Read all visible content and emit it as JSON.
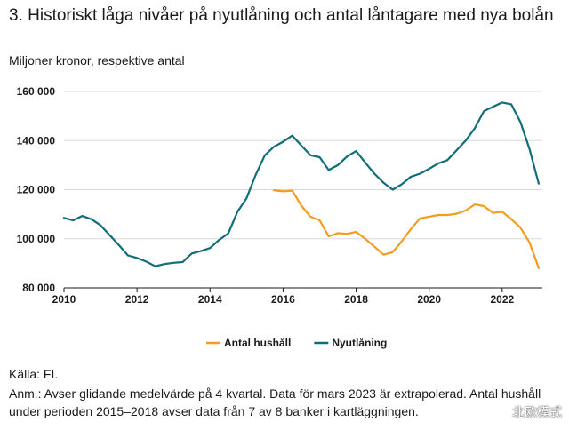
{
  "header": {
    "title": "3. Historiskt låga nivåer på nyutlåning och antal låntagare med nya bolån",
    "subtitle": "Miljoner kronor, respektive antal"
  },
  "chart_data": {
    "type": "line",
    "ylim": [
      80000,
      160000
    ],
    "xlim": [
      2010,
      2023.1
    ],
    "y_ticks": [
      80000,
      100000,
      120000,
      140000,
      160000
    ],
    "y_tick_labels": [
      "80 000",
      "100 000",
      "120 000",
      "140 000",
      "160 000"
    ],
    "x_ticks": [
      2010,
      2012,
      2014,
      2016,
      2018,
      2020,
      2022
    ],
    "x_tick_labels": [
      "2010",
      "2012",
      "2014",
      "2016",
      "2018",
      "2020",
      "2022"
    ],
    "grid": "horizontal",
    "legend_position": "bottom",
    "series": [
      {
        "name": "Antal hushåll",
        "color": "#F39C1F",
        "points": [
          [
            2015.75,
            119800
          ],
          [
            2016.0,
            119300
          ],
          [
            2016.25,
            119600
          ],
          [
            2016.5,
            113500
          ],
          [
            2016.75,
            109000
          ],
          [
            2017.0,
            107500
          ],
          [
            2017.25,
            101000
          ],
          [
            2017.5,
            102300
          ],
          [
            2017.75,
            102000
          ],
          [
            2018.0,
            102800
          ],
          [
            2018.25,
            100000
          ],
          [
            2018.5,
            96800
          ],
          [
            2018.75,
            93500
          ],
          [
            2019.0,
            94500
          ],
          [
            2019.25,
            99000
          ],
          [
            2019.5,
            104000
          ],
          [
            2019.75,
            108300
          ],
          [
            2020.0,
            109000
          ],
          [
            2020.25,
            109700
          ],
          [
            2020.5,
            109700
          ],
          [
            2020.75,
            110200
          ],
          [
            2021.0,
            111500
          ],
          [
            2021.25,
            114000
          ],
          [
            2021.5,
            113300
          ],
          [
            2021.75,
            110500
          ],
          [
            2022.0,
            111000
          ],
          [
            2022.25,
            108000
          ],
          [
            2022.5,
            104500
          ],
          [
            2022.75,
            98500
          ],
          [
            2023.0,
            88000
          ]
        ]
      },
      {
        "name": "Nyutlåning",
        "color": "#0F6E78",
        "points": [
          [
            2010.0,
            108500
          ],
          [
            2010.25,
            107500
          ],
          [
            2010.5,
            109300
          ],
          [
            2010.75,
            108000
          ],
          [
            2011.0,
            105500
          ],
          [
            2011.25,
            101500
          ],
          [
            2011.5,
            97500
          ],
          [
            2011.75,
            93200
          ],
          [
            2012.0,
            92200
          ],
          [
            2012.25,
            90700
          ],
          [
            2012.5,
            88800
          ],
          [
            2012.75,
            89700
          ],
          [
            2013.0,
            90200
          ],
          [
            2013.25,
            90500
          ],
          [
            2013.5,
            94000
          ],
          [
            2013.75,
            95000
          ],
          [
            2014.0,
            96200
          ],
          [
            2014.25,
            99500
          ],
          [
            2014.5,
            102200
          ],
          [
            2014.75,
            111000
          ],
          [
            2015.0,
            116500
          ],
          [
            2015.25,
            126000
          ],
          [
            2015.5,
            134000
          ],
          [
            2015.75,
            137500
          ],
          [
            2016.0,
            139500
          ],
          [
            2016.25,
            142000
          ],
          [
            2016.5,
            138000
          ],
          [
            2016.75,
            134000
          ],
          [
            2017.0,
            133200
          ],
          [
            2017.25,
            128000
          ],
          [
            2017.5,
            130000
          ],
          [
            2017.75,
            133500
          ],
          [
            2018.0,
            135700
          ],
          [
            2018.25,
            131000
          ],
          [
            2018.5,
            126500
          ],
          [
            2018.75,
            122800
          ],
          [
            2019.0,
            120000
          ],
          [
            2019.25,
            122200
          ],
          [
            2019.5,
            125300
          ],
          [
            2019.75,
            126500
          ],
          [
            2020.0,
            128500
          ],
          [
            2020.25,
            130700
          ],
          [
            2020.5,
            132000
          ],
          [
            2020.75,
            136000
          ],
          [
            2021.0,
            140000
          ],
          [
            2021.25,
            145000
          ],
          [
            2021.5,
            152000
          ],
          [
            2021.75,
            153800
          ],
          [
            2022.0,
            155500
          ],
          [
            2022.25,
            154800
          ],
          [
            2022.5,
            147500
          ],
          [
            2022.75,
            136500
          ],
          [
            2023.0,
            122500
          ]
        ]
      }
    ]
  },
  "footer": {
    "source": "Källa: FI.",
    "note": "Anm.: Avser glidande medelvärde på 4 kvartal. Data för mars 2023 är extrapolerad. Antal hushåll under perioden 2015–2018 avser data från 7 av 8 banker i kartläggningen."
  },
  "watermark": "北欧模式"
}
